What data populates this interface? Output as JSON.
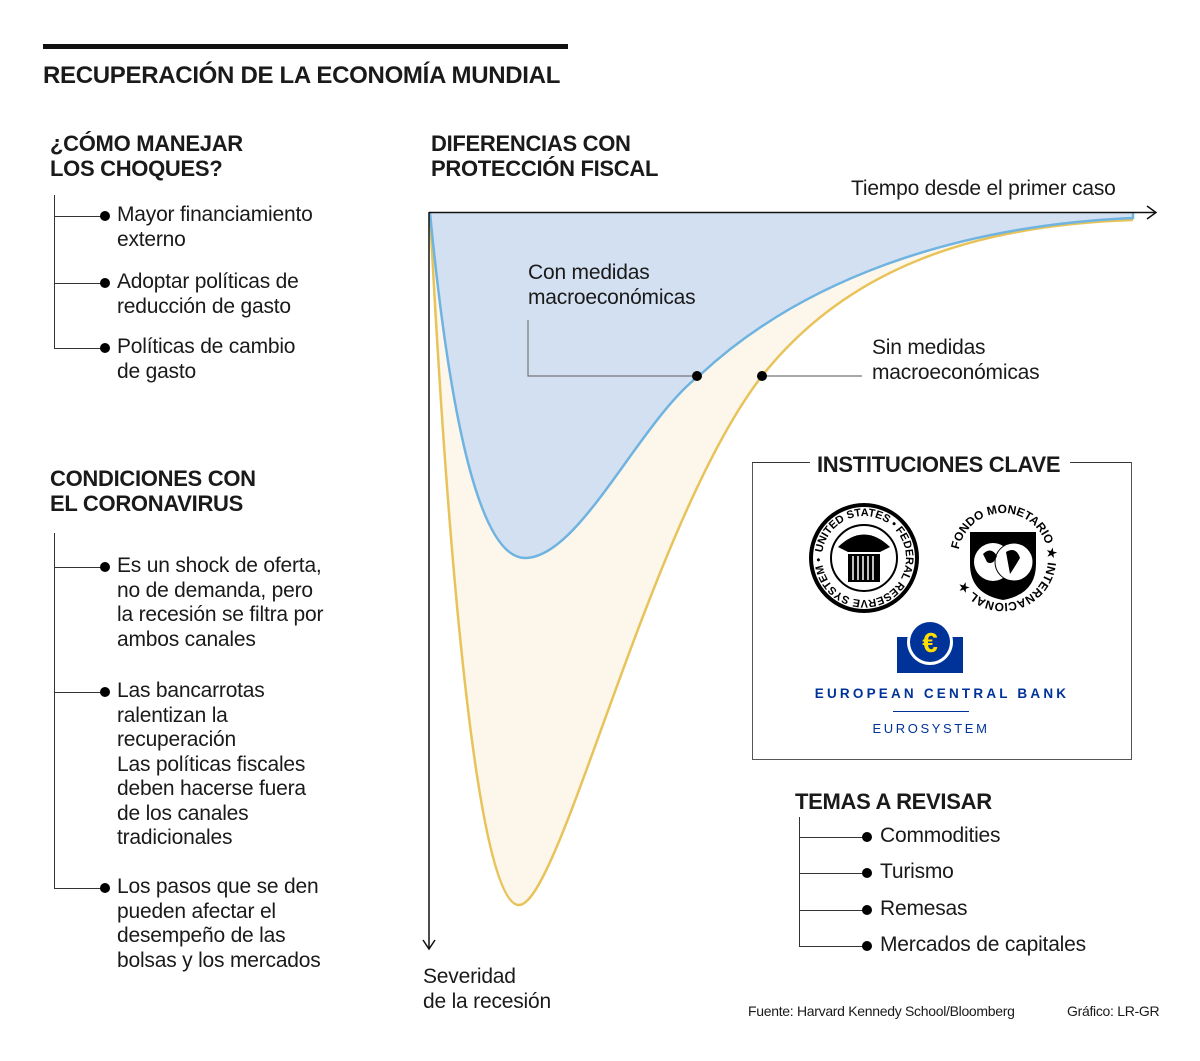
{
  "title": "RECUPERACIÓN DE LA ECONOMÍA MUNDIAL",
  "shocks": {
    "heading": [
      "¿CÓMO MANEJAR",
      "LOS CHOQUES?"
    ],
    "items": [
      [
        "Mayor financiamiento",
        "externo"
      ],
      [
        "Adoptar políticas de",
        "reducción de gasto"
      ],
      [
        "Políticas de cambio",
        "de gasto"
      ]
    ]
  },
  "conditions": {
    "heading": [
      "CONDICIONES CON",
      "EL CORONAVIRUS"
    ],
    "items": [
      [
        "Es un shock de oferta,",
        "no de demanda, pero",
        "la recesión se filtra por",
        "ambos canales"
      ],
      [
        "Las bancarrotas",
        "ralentizan la",
        "recuperación",
        "Las políticas fiscales",
        "deben hacerse fuera",
        "de los canales",
        "tradicionales"
      ],
      [
        "Los pasos que se den",
        "pueden afectar el",
        "desempeño de las",
        "bolsas y los mercados"
      ]
    ]
  },
  "chart": {
    "heading": [
      "DIFERENCIAS CON",
      "PROTECCIÓN FISCAL"
    ],
    "x_label": "Tiempo desde el primer caso",
    "y_label": [
      "Severidad",
      "de la recesión"
    ],
    "with_label": [
      "Con medidas",
      "macroeconómicas"
    ],
    "without_label": [
      "Sin medidas",
      "macroeconómicas"
    ],
    "colors": {
      "with_fill": "#d3e0f1",
      "with_line": "#6fb3e0",
      "without_fill": "#fdf6ea",
      "without_line": "#e8c35a"
    }
  },
  "institutions": {
    "heading": "INSTITUCIONES CLAVE",
    "fed_logo": "UNITED STATES FEDERAL RESERVE SYSTEM",
    "imf_logo": "FONDO MONETARIO INTERNACIONAL",
    "ecb_name": "EUROPEAN CENTRAL BANK",
    "ecb_sub": "EUROSYSTEM",
    "ecb_color": "#003399"
  },
  "topics": {
    "heading": "TEMAS A REVISAR",
    "items": [
      "Commodities",
      "Turismo",
      "Remesas",
      "Mercados de capitales"
    ]
  },
  "footer": {
    "source": "Fuente: Harvard Kennedy School/Bloomberg",
    "credit": "Gráfico: LR-GR"
  }
}
